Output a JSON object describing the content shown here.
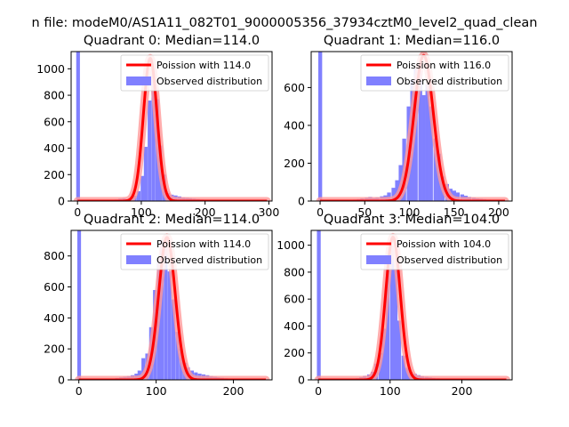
{
  "suptitle": "n file: modeM0/AS1A11_082T01_9000005356_37934cztM0_level2_quad_clean",
  "colors": {
    "hist": "#8080ff",
    "fit": "#ff0000",
    "fit_shadow": "#ff9999",
    "axis": "#000000"
  },
  "chart_data": [
    {
      "type": "bar",
      "title": "Quadrant 0: Median=114.0",
      "xlim": [
        -10,
        305
      ],
      "ylim": [
        0,
        1130
      ],
      "xticks": [
        0,
        100,
        200,
        300
      ],
      "yticks": [
        0,
        200,
        400,
        600,
        800,
        1000
      ],
      "legend": {
        "placement": "top-right",
        "entries": [
          "Poission with 114.0",
          "Observed distribution"
        ]
      },
      "lambda": 114.0,
      "fit_scale": 1080,
      "histogram": {
        "bin_width": 5.8,
        "starts": [
          -2,
          4,
          10,
          16,
          22,
          28,
          34,
          40,
          46,
          52,
          58,
          64,
          70,
          76,
          81,
          87,
          93,
          99,
          104,
          110,
          116,
          122,
          127,
          133,
          139,
          145,
          151,
          157,
          163,
          169,
          174,
          180,
          186,
          192,
          198,
          203,
          209,
          215,
          221,
          227,
          233,
          239,
          245,
          251,
          257,
          263,
          268,
          274,
          280,
          285
        ],
        "values": [
          1130,
          3,
          3,
          2,
          3,
          3,
          5,
          5,
          6,
          8,
          12,
          18,
          22,
          15,
          20,
          40,
          75,
          190,
          410,
          760,
          1000,
          770,
          420,
          200,
          60,
          48,
          42,
          35,
          28,
          25,
          22,
          18,
          15,
          12,
          10,
          9,
          8,
          7,
          6,
          5,
          4,
          3,
          3,
          2,
          2,
          2,
          2,
          1,
          1,
          1
        ]
      }
    },
    {
      "type": "bar",
      "title": "Quadrant 1: Median=116.0",
      "xlim": [
        -10,
        215
      ],
      "ylim": [
        0,
        790
      ],
      "xticks": [
        0,
        50,
        100,
        150,
        200
      ],
      "yticks": [
        0,
        200,
        400,
        600
      ],
      "legend": {
        "placement": "top-right",
        "entries": [
          "Poission with 116.0",
          "Observed distribution"
        ]
      },
      "lambda": 116.0,
      "fit_scale": 770,
      "histogram": {
        "bin_width": 4.3,
        "starts": [
          -2,
          3,
          7,
          11,
          15,
          20,
          24,
          28,
          33,
          37,
          41,
          45,
          50,
          54,
          58,
          62,
          67,
          71,
          75,
          80,
          84,
          88,
          92,
          97,
          101,
          105,
          110,
          114,
          118,
          122,
          127,
          131,
          135,
          140,
          144,
          148,
          152,
          157,
          161,
          165,
          170,
          174,
          178,
          182,
          187,
          191,
          195,
          200,
          203
        ],
        "values": [
          790,
          3,
          2,
          2,
          3,
          3,
          5,
          5,
          6,
          8,
          10,
          14,
          18,
          22,
          16,
          20,
          25,
          30,
          45,
          70,
          110,
          190,
          330,
          500,
          640,
          700,
          690,
          560,
          620,
          500,
          330,
          250,
          130,
          90,
          65,
          55,
          45,
          35,
          28,
          22,
          18,
          14,
          12,
          10,
          8,
          6,
          5,
          4,
          3
        ]
      }
    },
    {
      "type": "bar",
      "title": "Quadrant 2: Median=114.0",
      "xlim": [
        -10,
        250
      ],
      "ylim": [
        0,
        965
      ],
      "xticks": [
        0,
        100,
        200
      ],
      "yticks": [
        0,
        200,
        400,
        600,
        800
      ],
      "legend": {
        "placement": "top-right",
        "entries": [
          "Poission with 114.0",
          "Observed distribution"
        ]
      },
      "lambda": 114.0,
      "fit_scale": 920,
      "histogram": {
        "bin_width": 4.8,
        "starts": [
          -2,
          3,
          8,
          13,
          18,
          23,
          28,
          33,
          38,
          42,
          47,
          52,
          57,
          62,
          67,
          72,
          76,
          81,
          86,
          91,
          96,
          101,
          105,
          110,
          115,
          120,
          125,
          130,
          135,
          139,
          144,
          149,
          154,
          159,
          164,
          169,
          174,
          178,
          183,
          188,
          193,
          198,
          203,
          208,
          213,
          217,
          222,
          227,
          232
        ],
        "values": [
          965,
          3,
          2,
          2,
          3,
          3,
          5,
          5,
          6,
          8,
          12,
          16,
          20,
          25,
          30,
          40,
          60,
          140,
          170,
          340,
          580,
          790,
          900,
          860,
          700,
          520,
          310,
          200,
          110,
          80,
          60,
          48,
          40,
          35,
          30,
          25,
          20,
          16,
          13,
          10,
          8,
          6,
          5,
          4,
          3,
          2,
          2,
          2,
          1
        ]
      }
    },
    {
      "type": "bar",
      "title": "Quadrant 3: Median=104.0",
      "xlim": [
        -10,
        270
      ],
      "ylim": [
        0,
        1110
      ],
      "xticks": [
        0,
        100,
        200
      ],
      "yticks": [
        0,
        200,
        400,
        600,
        800,
        1000
      ],
      "legend": {
        "placement": "top-right",
        "entries": [
          "Poission with 104.0",
          "Observed distribution"
        ]
      },
      "lambda": 104.0,
      "fit_scale": 1060,
      "histogram": {
        "bin_width": 5.3,
        "starts": [
          -2,
          4,
          9,
          14,
          20,
          25,
          30,
          36,
          41,
          46,
          52,
          57,
          62,
          68,
          73,
          78,
          84,
          89,
          94,
          100,
          105,
          110,
          116,
          121,
          126,
          132,
          137,
          142,
          148,
          153,
          158,
          164,
          169,
          174,
          180,
          185,
          190,
          196,
          201,
          206,
          212,
          217,
          222,
          228,
          233,
          238,
          244,
          249,
          254
        ],
        "values": [
          1110,
          3,
          2,
          2,
          3,
          3,
          5,
          5,
          6,
          8,
          12,
          20,
          30,
          40,
          60,
          120,
          200,
          380,
          820,
          1000,
          820,
          440,
          180,
          90,
          60,
          45,
          35,
          28,
          22,
          18,
          14,
          12,
          10,
          8,
          7,
          6,
          5,
          4,
          4,
          3,
          3,
          2,
          2,
          2,
          1,
          1,
          1,
          1,
          1
        ]
      }
    }
  ]
}
